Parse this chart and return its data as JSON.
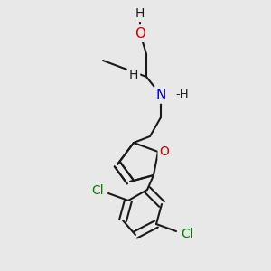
{
  "background_color": "#e8e8e8",
  "bond_color": "#1a1a1a",
  "oxygen_color": "#cc0000",
  "nitrogen_color": "#0000cc",
  "chlorine_color": "#008000",
  "bond_width": 1.5,
  "fig_w": 3.0,
  "fig_h": 3.0,
  "dpi": 100,
  "xlim": [
    0,
    300
  ],
  "ylim": [
    0,
    300
  ]
}
